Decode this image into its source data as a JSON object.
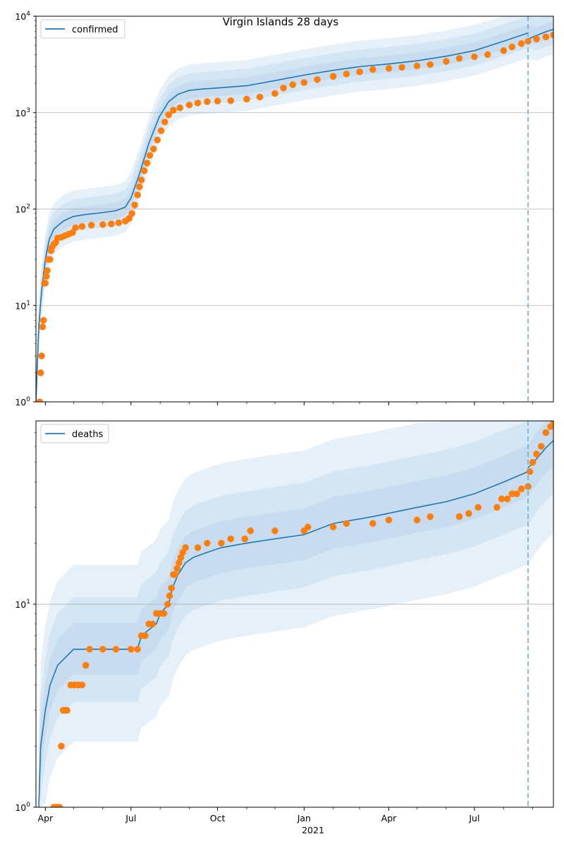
{
  "title": "Virgin Islands 28 days",
  "colors": {
    "model": "#1f77b4",
    "observed": "#ff7f0e",
    "band": "#a6c8e6",
    "grid": "#b0b0b0",
    "forecast_line": "#6aa8cc"
  },
  "x_axis": {
    "tick_labels": [
      "Apr",
      "Jul",
      "Oct",
      "Jan",
      "Apr",
      "Jul"
    ],
    "tick_dates": [
      "2020-04-01",
      "2020-07-01",
      "2020-10-01",
      "2021-01-01",
      "2021-04-01",
      "2021-07-01"
    ],
    "year_label": "2021",
    "xlim": [
      "2020-03-22",
      "2021-09-23"
    ],
    "forecast_start": "2021-08-27"
  },
  "chart_data": [
    {
      "type": "line",
      "panel": "top",
      "title": "Virgin Islands 28 days",
      "y_scale": "log",
      "ylim": [
        1,
        10000
      ],
      "y_tick_labels": [
        {
          "value": 1,
          "base": "10",
          "exp": "0"
        },
        {
          "value": 10,
          "base": "10",
          "exp": "1"
        },
        {
          "value": 100,
          "base": "10",
          "exp": "2"
        },
        {
          "value": 1000,
          "base": "10",
          "exp": "3"
        },
        {
          "value": 10000,
          "base": "10",
          "exp": "4"
        }
      ],
      "grid": "horizontal",
      "legend": {
        "position": "top-left",
        "label": "confirmed"
      },
      "series": [
        {
          "name": "confirmed",
          "kind": "model",
          "points": [
            [
              "2020-03-22",
              1
            ],
            [
              "2020-03-25",
              6
            ],
            [
              "2020-03-28",
              14
            ],
            [
              "2020-04-01",
              30
            ],
            [
              "2020-04-05",
              48
            ],
            [
              "2020-04-10",
              62
            ],
            [
              "2020-04-20",
              75
            ],
            [
              "2020-05-01",
              84
            ],
            [
              "2020-05-15",
              88
            ],
            [
              "2020-06-01",
              92
            ],
            [
              "2020-06-15",
              96
            ],
            [
              "2020-06-25",
              105
            ],
            [
              "2020-07-01",
              130
            ],
            [
              "2020-07-10",
              230
            ],
            [
              "2020-07-20",
              480
            ],
            [
              "2020-07-31",
              900
            ],
            [
              "2020-08-10",
              1300
            ],
            [
              "2020-08-20",
              1550
            ],
            [
              "2020-09-01",
              1700
            ],
            [
              "2020-09-15",
              1760
            ],
            [
              "2020-10-01",
              1800
            ],
            [
              "2020-11-01",
              1900
            ],
            [
              "2020-12-01",
              2150
            ],
            [
              "2021-01-01",
              2450
            ],
            [
              "2021-02-01",
              2750
            ],
            [
              "2021-03-01",
              3000
            ],
            [
              "2021-04-01",
              3200
            ],
            [
              "2021-05-01",
              3450
            ],
            [
              "2021-06-01",
              3850
            ],
            [
              "2021-07-01",
              4400
            ],
            [
              "2021-08-01",
              5500
            ],
            [
              "2021-08-27",
              6700
            ]
          ],
          "forecast": [
            [
              "2021-08-27",
              5800
            ],
            [
              "2021-09-05",
              6300
            ],
            [
              "2021-09-15",
              6900
            ],
            [
              "2021-09-23",
              7300
            ]
          ]
        },
        {
          "name": "confirmed (observed)",
          "kind": "observed",
          "points": [
            [
              "2020-03-26",
              1
            ],
            [
              "2020-03-27",
              2
            ],
            [
              "2020-03-28",
              3
            ],
            [
              "2020-03-29",
              6
            ],
            [
              "2020-03-30",
              7
            ],
            [
              "2020-03-31",
              17
            ],
            [
              "2020-04-01",
              17
            ],
            [
              "2020-04-02",
              20
            ],
            [
              "2020-04-03",
              23
            ],
            [
              "2020-04-04",
              30
            ],
            [
              "2020-04-06",
              30
            ],
            [
              "2020-04-07",
              37
            ],
            [
              "2020-04-08",
              40
            ],
            [
              "2020-04-10",
              43
            ],
            [
              "2020-04-12",
              45
            ],
            [
              "2020-04-14",
              50
            ],
            [
              "2020-04-18",
              51
            ],
            [
              "2020-04-22",
              53
            ],
            [
              "2020-04-26",
              55
            ],
            [
              "2020-04-30",
              57
            ],
            [
              "2020-05-03",
              64
            ],
            [
              "2020-05-10",
              66
            ],
            [
              "2020-05-20",
              68
            ],
            [
              "2020-06-01",
              69
            ],
            [
              "2020-06-10",
              70
            ],
            [
              "2020-06-18",
              72
            ],
            [
              "2020-06-25",
              75
            ],
            [
              "2020-06-29",
              80
            ],
            [
              "2020-07-02",
              90
            ],
            [
              "2020-07-05",
              110
            ],
            [
              "2020-07-08",
              140
            ],
            [
              "2020-07-10",
              170
            ],
            [
              "2020-07-12",
              200
            ],
            [
              "2020-07-15",
              250
            ],
            [
              "2020-07-18",
              300
            ],
            [
              "2020-07-21",
              360
            ],
            [
              "2020-07-25",
              420
            ],
            [
              "2020-07-29",
              520
            ],
            [
              "2020-08-02",
              650
            ],
            [
              "2020-08-06",
              800
            ],
            [
              "2020-08-10",
              950
            ],
            [
              "2020-08-15",
              1060
            ],
            [
              "2020-08-22",
              1120
            ],
            [
              "2020-09-01",
              1200
            ],
            [
              "2020-09-10",
              1260
            ],
            [
              "2020-09-20",
              1300
            ],
            [
              "2020-10-01",
              1320
            ],
            [
              "2020-10-15",
              1330
            ],
            [
              "2020-11-01",
              1380
            ],
            [
              "2020-11-15",
              1450
            ],
            [
              "2020-12-01",
              1580
            ],
            [
              "2020-12-10",
              1800
            ],
            [
              "2020-12-20",
              1950
            ],
            [
              "2021-01-01",
              2050
            ],
            [
              "2021-01-15",
              2200
            ],
            [
              "2021-02-01",
              2380
            ],
            [
              "2021-02-15",
              2520
            ],
            [
              "2021-03-01",
              2650
            ],
            [
              "2021-03-15",
              2800
            ],
            [
              "2021-04-01",
              2880
            ],
            [
              "2021-04-15",
              2950
            ],
            [
              "2021-05-01",
              3050
            ],
            [
              "2021-05-15",
              3150
            ],
            [
              "2021-06-01",
              3400
            ],
            [
              "2021-06-15",
              3650
            ],
            [
              "2021-07-01",
              3800
            ],
            [
              "2021-07-15",
              4000
            ],
            [
              "2021-08-01",
              4400
            ],
            [
              "2021-08-10",
              4800
            ],
            [
              "2021-08-20",
              5200
            ],
            [
              "2021-08-27",
              5500
            ],
            [
              "2021-09-05",
              5800
            ],
            [
              "2021-09-15",
              6100
            ],
            [
              "2021-09-23",
              6400
            ]
          ]
        }
      ],
      "bands": [
        {
          "lo_factor": 0.55,
          "hi_factor": 1.85
        },
        {
          "lo_factor": 0.7,
          "hi_factor": 1.5
        },
        {
          "lo_factor": 0.82,
          "hi_factor": 1.22
        }
      ]
    },
    {
      "type": "line",
      "panel": "bottom",
      "y_scale": "log",
      "ylim": [
        1,
        80
      ],
      "y_tick_labels": [
        {
          "value": 1,
          "base": "10",
          "exp": "0"
        },
        {
          "value": 10,
          "base": "10",
          "exp": "1"
        }
      ],
      "grid": "horizontal",
      "legend": {
        "position": "top-left",
        "label": "deaths"
      },
      "series": [
        {
          "name": "deaths",
          "kind": "model",
          "points": [
            [
              "2020-03-25",
              1
            ],
            [
              "2020-03-27",
              2
            ],
            [
              "2020-04-01",
              3
            ],
            [
              "2020-04-06",
              4
            ],
            [
              "2020-04-14",
              5
            ],
            [
              "2020-05-01",
              6
            ],
            [
              "2020-07-08",
              6
            ],
            [
              "2020-07-12",
              7
            ],
            [
              "2020-07-28",
              8
            ],
            [
              "2020-08-01",
              9
            ],
            [
              "2020-08-10",
              10
            ],
            [
              "2020-08-14",
              12
            ],
            [
              "2020-08-20",
              14
            ],
            [
              "2020-08-28",
              16
            ],
            [
              "2020-09-05",
              17
            ],
            [
              "2020-09-20",
              18
            ],
            [
              "2020-10-05",
              19
            ],
            [
              "2020-11-01",
              20
            ],
            [
              "2020-12-01",
              21
            ],
            [
              "2021-01-01",
              22
            ],
            [
              "2021-02-01",
              25
            ],
            [
              "2021-03-15",
              27
            ],
            [
              "2021-05-01",
              30
            ],
            [
              "2021-06-01",
              32
            ],
            [
              "2021-07-01",
              35
            ],
            [
              "2021-08-01",
              40
            ],
            [
              "2021-08-27",
              45
            ]
          ],
          "forecast": [
            [
              "2021-08-27",
              47
            ],
            [
              "2021-09-05",
              52
            ],
            [
              "2021-09-15",
              59
            ],
            [
              "2021-09-23",
              64
            ]
          ]
        },
        {
          "name": "deaths (observed)",
          "kind": "observed",
          "points": [
            [
              "2020-04-10",
              1
            ],
            [
              "2020-04-12",
              1
            ],
            [
              "2020-04-14",
              1
            ],
            [
              "2020-04-16",
              1
            ],
            [
              "2020-04-18",
              2
            ],
            [
              "2020-04-20",
              3
            ],
            [
              "2020-04-22",
              3
            ],
            [
              "2020-04-24",
              3
            ],
            [
              "2020-04-28",
              4
            ],
            [
              "2020-05-02",
              4
            ],
            [
              "2020-05-06",
              4
            ],
            [
              "2020-05-10",
              4
            ],
            [
              "2020-05-14",
              5
            ],
            [
              "2020-05-18",
              6
            ],
            [
              "2020-06-01",
              6
            ],
            [
              "2020-06-15",
              6
            ],
            [
              "2020-07-01",
              6
            ],
            [
              "2020-07-08",
              6
            ],
            [
              "2020-07-12",
              7
            ],
            [
              "2020-07-16",
              7
            ],
            [
              "2020-07-20",
              8
            ],
            [
              "2020-07-24",
              8
            ],
            [
              "2020-07-28",
              9
            ],
            [
              "2020-08-01",
              9
            ],
            [
              "2020-08-05",
              9
            ],
            [
              "2020-08-09",
              10
            ],
            [
              "2020-08-11",
              11
            ],
            [
              "2020-08-13",
              12
            ],
            [
              "2020-08-15",
              14
            ],
            [
              "2020-08-17",
              14
            ],
            [
              "2020-08-19",
              15
            ],
            [
              "2020-08-21",
              16
            ],
            [
              "2020-08-23",
              17
            ],
            [
              "2020-08-25",
              18
            ],
            [
              "2020-08-28",
              19
            ],
            [
              "2020-09-10",
              19
            ],
            [
              "2020-09-20",
              20
            ],
            [
              "2020-10-05",
              20
            ],
            [
              "2020-10-15",
              21
            ],
            [
              "2020-10-30",
              21
            ],
            [
              "2020-11-05",
              23
            ],
            [
              "2020-12-01",
              23
            ],
            [
              "2021-01-01",
              23
            ],
            [
              "2021-01-05",
              24
            ],
            [
              "2021-02-01",
              24
            ],
            [
              "2021-02-15",
              25
            ],
            [
              "2021-03-15",
              25
            ],
            [
              "2021-04-01",
              26
            ],
            [
              "2021-05-01",
              26
            ],
            [
              "2021-05-15",
              27
            ],
            [
              "2021-06-15",
              27
            ],
            [
              "2021-06-25",
              28
            ],
            [
              "2021-07-05",
              30
            ],
            [
              "2021-07-25",
              30
            ],
            [
              "2021-07-30",
              33
            ],
            [
              "2021-08-05",
              33
            ],
            [
              "2021-08-10",
              35
            ],
            [
              "2021-08-15",
              35
            ],
            [
              "2021-08-20",
              37
            ],
            [
              "2021-08-27",
              38
            ],
            [
              "2021-08-29",
              45
            ],
            [
              "2021-09-01",
              50
            ],
            [
              "2021-09-05",
              55
            ],
            [
              "2021-09-10",
              60
            ],
            [
              "2021-09-15",
              70
            ],
            [
              "2021-09-20",
              75
            ],
            [
              "2021-09-23",
              80
            ]
          ]
        }
      ],
      "bands": [
        {
          "lo_factor": 0.35,
          "hi_factor": 2.6
        },
        {
          "lo_factor": 0.55,
          "hi_factor": 1.8
        },
        {
          "lo_factor": 0.75,
          "hi_factor": 1.35
        }
      ]
    }
  ]
}
